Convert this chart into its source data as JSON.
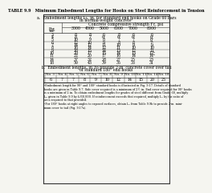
{
  "title": "TABLE 9.9   Minimum Embedment Lengths for Hooks on Steel Reinforcement in Tension",
  "section_a_line1": "a.  Embedment lengths lₑₕ, in. for standard end hooks on Grade 60 bars",
  "section_a_line2": "in normal-weight concreteᵃ",
  "col_header_main": "Concrete compressive strength f'c, psi",
  "col_headers": [
    "Bar\nsize\nno.",
    "3000",
    "4000",
    "5000",
    "6000",
    "7000",
    "8000"
  ],
  "rows": [
    [
      "3",
      "8",
      "8",
      "6",
      "8",
      "6",
      "6"
    ],
    [
      "4",
      "8",
      "7",
      "6ᵇ",
      "6ᵇ",
      "6ᵇ",
      "6ᵇ"
    ],
    [
      "5",
      "10",
      "9",
      "8",
      "7",
      "7",
      "6ᵇ"
    ],
    [
      "6",
      "12",
      "10",
      "9",
      "8",
      "8",
      "7ᵇ"
    ],
    [
      "7",
      "14",
      "12",
      "11",
      "10",
      "9",
      "9"
    ],
    [
      "8",
      "16",
      "14",
      "12",
      "11",
      "10",
      "10"
    ],
    [
      "9",
      "18",
      "15",
      "14",
      "13",
      "12",
      "11"
    ],
    [
      "10",
      "20",
      "17",
      "15",
      "14",
      "13",
      "12ᵇ"
    ],
    [
      "11",
      "22",
      "20",
      "17",
      "16",
      "14",
      "14ᵇ"
    ],
    [
      "14",
      "37",
      "32",
      "28",
      "27",
      "25",
      "23"
    ],
    [
      "18",
      "50",
      "43",
      "39",
      "35",
      "33",
      "31"
    ]
  ],
  "section_b_line1": "b.  Embedment lengths, in. to provide 2-in. concrete cover over tail",
  "section_b_line2": "of standard 180° end hooks",
  "row_b_headers": [
    "No. 3",
    "No. 4",
    "No. 5",
    "No. 6",
    "No. 7",
    "No. 8",
    "No. 9",
    "No. 10",
    "No. 11",
    "No. 14",
    "No. 18"
  ],
  "row_b_values": [
    "6",
    "7",
    "7",
    "8",
    "9",
    "10",
    "12",
    "14",
    "15",
    "20",
    "25"
  ],
  "footnotes": [
    "ᵃEmbedment length for 90° and 180° standard hooks is illustrated in Fig. 9.17. Details of standard",
    "hooks are given in Table 9.7. Side cover required is a minimum of 2½ in. End cover required for 90° hooks",
    "is a minimum of 2 in. To obtain embedment lengths for grades of steel different from Grade 60, multiply",
    "lₑₕ given in Table 9.9 by fᵧ/60,000. If reinforcement exceeds that required, multiply lₑₕ by the ratio of",
    "area required to that provided.",
    "ᵇFor 180° hooks at right angles to exposed surfaces, obtain lₑₕ from Table 9.9b to provide 2-in. mini-",
    "mum cover to tail (Fig. 9.17a)."
  ],
  "bg_color": "#f5f5f0",
  "text_color": "#000000",
  "line_color": "#333333"
}
